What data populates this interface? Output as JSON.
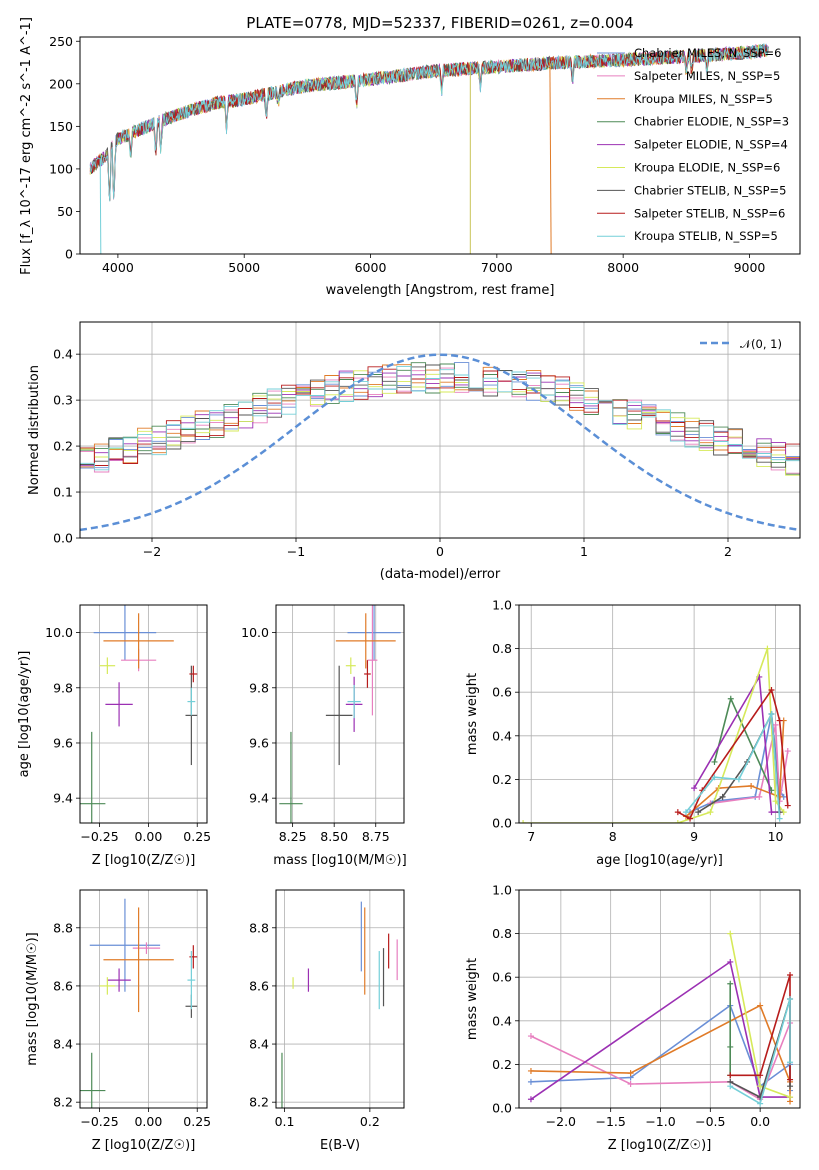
{
  "figure": {
    "title": "PLATE=0778, MJD=52337, FIBERID=0261, z=0.004"
  },
  "chart_data": [
    {
      "id": "spectrum",
      "type": "line",
      "title": "PLATE=0778, MJD=52337, FIBERID=0261, z=0.004",
      "xlabel": "wavelength [Angstrom, rest frame]",
      "ylabel": "Flux [f_λ 10^-17 erg cm^-2 s^-1 A^-1]",
      "xlim": [
        3700,
        9400
      ],
      "ylim": [
        0,
        255
      ],
      "xticks": [
        4000,
        5000,
        6000,
        7000,
        8000,
        9000
      ],
      "yticks": [
        0,
        50,
        100,
        150,
        200,
        250
      ],
      "grid": false,
      "legend_position": "top-right",
      "continuum": {
        "x": [
          3780,
          3900,
          4000,
          4200,
          4400,
          4600,
          4800,
          5000,
          5500,
          6000,
          6500,
          7000,
          7500,
          8000,
          8500,
          9000,
          9150
        ],
        "y": [
          100,
          115,
          135,
          148,
          160,
          170,
          178,
          182,
          198,
          205,
          215,
          220,
          225,
          228,
          232,
          237,
          240
        ]
      },
      "series": [
        {
          "name": "Chabrier MILES, N_SSP=6",
          "color": "#6a8fd6"
        },
        {
          "name": "Salpeter MILES, N_SSP=5",
          "color": "#e77fbf"
        },
        {
          "name": "Kroupa MILES, N_SSP=5",
          "color": "#e07b28"
        },
        {
          "name": "Chabrier ELODIE, N_SSP=3",
          "color": "#4d8a57"
        },
        {
          "name": "Salpeter ELODIE, N_SSP=4",
          "color": "#9b30b3"
        },
        {
          "name": "Kroupa ELODIE, N_SSP=6",
          "color": "#d6e95a"
        },
        {
          "name": "Chabrier STELIB, N_SSP=5",
          "color": "#555555"
        },
        {
          "name": "Salpeter STELIB, N_SSP=6",
          "color": "#b71c1c"
        },
        {
          "name": "Kroupa STELIB, N_SSP=5",
          "color": "#74cfd8"
        }
      ]
    },
    {
      "id": "residuals",
      "type": "histogram",
      "xlabel": "(data-model)/error",
      "ylabel": "Normed distribution",
      "xlim": [
        -2.5,
        2.5
      ],
      "ylim": [
        0,
        0.47
      ],
      "xticks": [
        -2,
        -1,
        0,
        1,
        2
      ],
      "yticks": [
        0.0,
        0.1,
        0.2,
        0.3,
        0.4
      ],
      "grid": true,
      "legend_position": "top-right",
      "legend_entry": "𝒩(0, 1)",
      "bin_width": 0.1
    },
    {
      "id": "age-vs-Z",
      "type": "scatter",
      "xlabel": "Z [log10(Z/Z☉)]",
      "ylabel": "age [log10(age/yr)]",
      "xlim": [
        -0.35,
        0.3
      ],
      "ylim": [
        9.31,
        10.1
      ],
      "xticks": [
        -0.25,
        0.0,
        0.25
      ],
      "yticks": [
        9.4,
        9.6,
        9.8,
        10.0
      ],
      "grid": true,
      "points": [
        {
          "x": -0.12,
          "y": 10.0,
          "xerr": 0.16,
          "yerr": 0.1,
          "color": "#6a8fd6"
        },
        {
          "x": -0.05,
          "y": 9.9,
          "xerr": 0.09,
          "yerr": 0.04,
          "color": "#e77fbf"
        },
        {
          "x": -0.05,
          "y": 9.97,
          "xerr": 0.18,
          "yerr": 0.1,
          "color": "#e07b28"
        },
        {
          "x": -0.29,
          "y": 9.38,
          "xerr": 0.07,
          "yerr": 0.26,
          "color": "#4d8a57"
        },
        {
          "x": -0.15,
          "y": 9.74,
          "xerr": 0.07,
          "yerr": 0.08,
          "color": "#9b30b3"
        },
        {
          "x": -0.21,
          "y": 9.88,
          "xerr": 0.04,
          "yerr": 0.03,
          "color": "#d6e95a"
        },
        {
          "x": 0.22,
          "y": 9.7,
          "xerr": 0.03,
          "yerr": 0.18,
          "color": "#555555"
        },
        {
          "x": 0.23,
          "y": 9.85,
          "xerr": 0.02,
          "yerr": 0.03,
          "color": "#b71c1c"
        },
        {
          "x": 0.22,
          "y": 9.75,
          "xerr": 0.02,
          "yerr": 0.05,
          "color": "#74cfd8"
        }
      ]
    },
    {
      "id": "age-vs-mass",
      "type": "scatter",
      "xlabel": "mass [log10(M/M☉)]",
      "xlim": [
        8.15,
        8.92
      ],
      "ylim": [
        9.31,
        10.1
      ],
      "xticks": [
        8.25,
        8.5,
        8.75
      ],
      "yticks": [
        9.4,
        9.6,
        9.8,
        10.0
      ],
      "grid": true,
      "points": [
        {
          "x": 8.74,
          "y": 10.0,
          "xerr": 0.16,
          "yerr": 0.1,
          "color": "#6a8fd6"
        },
        {
          "x": 8.73,
          "y": 9.9,
          "xerr": 0.03,
          "yerr": 0.2,
          "color": "#e77fbf"
        },
        {
          "x": 8.69,
          "y": 9.97,
          "xerr": 0.18,
          "yerr": 0.1,
          "color": "#e07b28"
        },
        {
          "x": 8.24,
          "y": 9.38,
          "xerr": 0.07,
          "yerr": 0.26,
          "color": "#4d8a57"
        },
        {
          "x": 8.62,
          "y": 9.74,
          "xerr": 0.05,
          "yerr": 0.1,
          "color": "#9b30b3"
        },
        {
          "x": 8.6,
          "y": 9.88,
          "xerr": 0.03,
          "yerr": 0.03,
          "color": "#d6e95a"
        },
        {
          "x": 8.53,
          "y": 9.7,
          "xerr": 0.08,
          "yerr": 0.18,
          "color": "#555555"
        },
        {
          "x": 8.7,
          "y": 9.85,
          "xerr": 0.02,
          "yerr": 0.05,
          "color": "#b71c1c"
        },
        {
          "x": 8.62,
          "y": 9.75,
          "xerr": 0.04,
          "yerr": 0.06,
          "color": "#74cfd8"
        }
      ]
    },
    {
      "id": "weight-vs-age",
      "type": "line",
      "xlabel": "age [log10(age/yr)]",
      "ylabel": "mass weight",
      "xlim": [
        6.85,
        10.3
      ],
      "ylim": [
        0,
        1.0
      ],
      "xticks": [
        7,
        8,
        9,
        10
      ],
      "yticks": [
        0.0,
        0.2,
        0.4,
        0.6,
        0.8,
        1.0
      ],
      "grid": true,
      "series": [
        {
          "color": "#6a8fd6",
          "x": [
            8.95,
            9.25,
            9.75,
            9.95,
            10.05,
            10.1
          ],
          "y": [
            0.05,
            0.1,
            0.12,
            0.5,
            0.15,
            0.12
          ]
        },
        {
          "color": "#e77fbf",
          "x": [
            9.2,
            9.8,
            10.0,
            10.05,
            10.15
          ],
          "y": [
            0.09,
            0.12,
            0.45,
            0.1,
            0.33
          ]
        },
        {
          "color": "#e07b28",
          "x": [
            8.9,
            9.3,
            9.7,
            10.05,
            10.1
          ],
          "y": [
            0.03,
            0.16,
            0.17,
            0.12,
            0.47
          ]
        },
        {
          "color": "#4d8a57",
          "x": [
            9.25,
            9.45,
            9.95
          ],
          "y": [
            0.28,
            0.57,
            0.15
          ]
        },
        {
          "color": "#9b30b3",
          "x": [
            9.0,
            9.8,
            9.95,
            10.05
          ],
          "y": [
            0.16,
            0.67,
            0.05,
            0.05
          ]
        },
        {
          "color": "#d6e95a",
          "x": [
            6.9,
            8.8,
            9.2,
            9.9,
            10.0,
            10.1
          ],
          "y": [
            0.0,
            0.0,
            0.05,
            0.8,
            0.1,
            0.05
          ]
        },
        {
          "color": "#555555",
          "x": [
            9.05,
            9.35,
            9.65,
            9.95,
            10.05
          ],
          "y": [
            0.05,
            0.12,
            0.28,
            0.5,
            0.05
          ]
        },
        {
          "color": "#b71c1c",
          "x": [
            8.8,
            8.95,
            9.1,
            9.95,
            10.05,
            10.15
          ],
          "y": [
            0.05,
            0.02,
            0.15,
            0.61,
            0.47,
            0.08
          ]
        },
        {
          "color": "#74cfd8",
          "x": [
            8.9,
            9.25,
            9.55,
            9.95,
            10.05
          ],
          "y": [
            0.05,
            0.21,
            0.2,
            0.5,
            0.02
          ]
        }
      ]
    },
    {
      "id": "mass-vs-Z",
      "type": "scatter",
      "xlabel": "Z [log10(Z/Z☉)]",
      "ylabel": "mass [log10(M/M☉)]",
      "xlim": [
        -0.35,
        0.3
      ],
      "ylim": [
        8.18,
        8.93
      ],
      "xticks": [
        -0.25,
        0.0,
        0.25
      ],
      "yticks": [
        8.2,
        8.4,
        8.6,
        8.8
      ],
      "grid": true,
      "points": [
        {
          "x": -0.12,
          "y": 8.74,
          "xerr": 0.18,
          "yerr": 0.16,
          "color": "#6a8fd6"
        },
        {
          "x": -0.01,
          "y": 8.73,
          "xerr": 0.07,
          "yerr": 0.02,
          "color": "#e77fbf"
        },
        {
          "x": -0.05,
          "y": 8.69,
          "xerr": 0.18,
          "yerr": 0.18,
          "color": "#e07b28"
        },
        {
          "x": -0.29,
          "y": 8.24,
          "xerr": 0.07,
          "yerr": 0.13,
          "color": "#4d8a57"
        },
        {
          "x": -0.15,
          "y": 8.62,
          "xerr": 0.06,
          "yerr": 0.04,
          "color": "#9b30b3"
        },
        {
          "x": -0.21,
          "y": 8.6,
          "xerr": 0.04,
          "yerr": 0.03,
          "color": "#d6e95a"
        },
        {
          "x": 0.22,
          "y": 8.53,
          "xerr": 0.03,
          "yerr": 0.04,
          "color": "#555555"
        },
        {
          "x": 0.23,
          "y": 8.7,
          "xerr": 0.02,
          "yerr": 0.04,
          "color": "#b71c1c"
        },
        {
          "x": 0.22,
          "y": 8.62,
          "xerr": 0.02,
          "yerr": 0.1,
          "color": "#74cfd8"
        }
      ]
    },
    {
      "id": "mass-vs-EBV",
      "type": "errorbar",
      "xlabel": "E(B-V)",
      "xlim": [
        0.09,
        0.24
      ],
      "ylim": [
        8.18,
        8.93
      ],
      "xticks": [
        0.1,
        0.2
      ],
      "yticks": [
        8.2,
        8.4,
        8.6,
        8.8
      ],
      "grid": true,
      "points": [
        {
          "x": 0.19,
          "y": 8.77,
          "yerr": 0.12,
          "color": "#6a8fd6"
        },
        {
          "x": 0.232,
          "y": 8.69,
          "yerr": 0.07,
          "color": "#e77fbf"
        },
        {
          "x": 0.194,
          "y": 8.72,
          "yerr": 0.15,
          "color": "#e07b28"
        },
        {
          "x": 0.097,
          "y": 8.25,
          "yerr": 0.12,
          "color": "#4d8a57"
        },
        {
          "x": 0.128,
          "y": 8.62,
          "yerr": 0.04,
          "color": "#9b30b3"
        },
        {
          "x": 0.11,
          "y": 8.61,
          "yerr": 0.02,
          "color": "#d6e95a"
        },
        {
          "x": 0.216,
          "y": 8.63,
          "yerr": 0.1,
          "color": "#555555"
        },
        {
          "x": 0.222,
          "y": 8.72,
          "yerr": 0.06,
          "color": "#b71c1c"
        },
        {
          "x": 0.211,
          "y": 8.62,
          "yerr": 0.1,
          "color": "#74cfd8"
        }
      ]
    },
    {
      "id": "weight-vs-Z",
      "type": "line",
      "xlabel": "Z [log10(Z/Z☉)]",
      "ylabel": "mass weight",
      "xlim": [
        -2.42,
        0.4
      ],
      "ylim": [
        0,
        1.0
      ],
      "xticks": [
        -2.0,
        -1.5,
        -1.0,
        -0.5,
        0.0
      ],
      "yticks": [
        0.0,
        0.2,
        0.4,
        0.6,
        0.8,
        1.0
      ],
      "grid": true,
      "series": [
        {
          "color": "#6a8fd6",
          "x": [
            -2.3,
            -1.3,
            -0.3,
            0.0,
            0.3,
            0.3
          ],
          "y": [
            0.12,
            0.14,
            0.47,
            0.1,
            0.2,
            0.08
          ]
        },
        {
          "color": "#e77fbf",
          "x": [
            -2.3,
            -1.3,
            -0.3,
            0.0,
            0.3
          ],
          "y": [
            0.33,
            0.11,
            0.12,
            0.04,
            0.39
          ]
        },
        {
          "color": "#e07b28",
          "x": [
            -2.3,
            -1.3,
            0.0,
            0.3,
            0.3
          ],
          "y": [
            0.17,
            0.16,
            0.47,
            0.12,
            0.03
          ]
        },
        {
          "color": "#4d8a57",
          "x": [
            -0.3,
            -0.3,
            -0.3
          ],
          "y": [
            0.57,
            0.28,
            0.15
          ]
        },
        {
          "color": "#9b30b3",
          "x": [
            -2.3,
            -0.3,
            0.0,
            0.3
          ],
          "y": [
            0.04,
            0.67,
            0.05,
            0.05
          ]
        },
        {
          "color": "#d6e95a",
          "x": [
            -0.3,
            0.0,
            0.3
          ],
          "y": [
            0.8,
            0.1,
            0.05
          ]
        },
        {
          "color": "#555555",
          "x": [
            -0.3,
            0.0,
            0.3,
            0.3
          ],
          "y": [
            0.12,
            0.05,
            0.5,
            0.1
          ]
        },
        {
          "color": "#b71c1c",
          "x": [
            -0.3,
            0.0,
            0.3,
            0.3
          ],
          "y": [
            0.15,
            0.15,
            0.61,
            0.13
          ]
        },
        {
          "color": "#74cfd8",
          "x": [
            -0.3,
            0.0,
            0.3,
            0.3
          ],
          "y": [
            0.1,
            0.02,
            0.5,
            0.21
          ]
        }
      ]
    }
  ]
}
